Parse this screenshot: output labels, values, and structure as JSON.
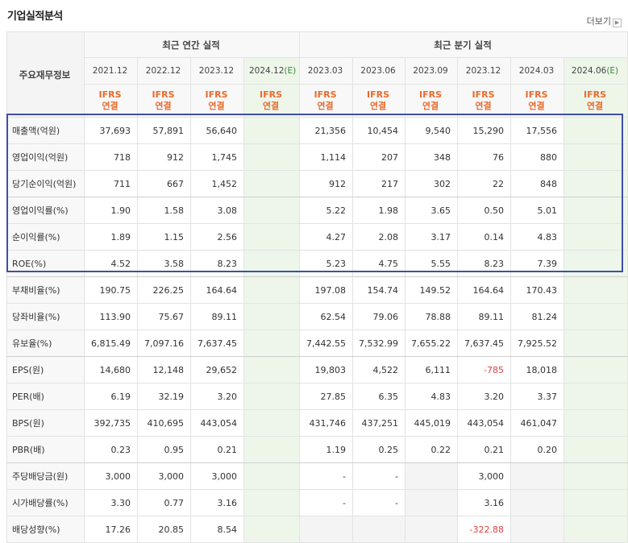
{
  "title": "기업실적분석",
  "more_label": "더보기",
  "header": {
    "row_label": "주요재무정보",
    "annual_group": "최근 연간 실적",
    "quarter_group": "최근 분기 실적",
    "periods": [
      "2021.12",
      "2022.12",
      "2023.12",
      "2024.12",
      "2023.03",
      "2023.06",
      "2023.09",
      "2023.12",
      "2024.03",
      "2024.06"
    ],
    "estimate_mark": "(E)",
    "ifrs": "IFRS",
    "consolidated": "연결"
  },
  "rows": [
    {
      "label": "매출액(억원)",
      "values": [
        "37,693",
        "57,891",
        "56,640",
        "",
        "21,356",
        "10,454",
        "9,540",
        "15,290",
        "17,556",
        ""
      ]
    },
    {
      "label": "영업이익(억원)",
      "values": [
        "718",
        "912",
        "1,745",
        "",
        "1,114",
        "207",
        "348",
        "76",
        "880",
        ""
      ]
    },
    {
      "label": "당기순이익(억원)",
      "values": [
        "711",
        "667",
        "1,452",
        "",
        "912",
        "217",
        "302",
        "22",
        "848",
        ""
      ]
    },
    {
      "label": "영업이익률(%)",
      "values": [
        "1.90",
        "1.58",
        "3.08",
        "",
        "5.22",
        "1.98",
        "3.65",
        "0.50",
        "5.01",
        ""
      ]
    },
    {
      "label": "순이익률(%)",
      "values": [
        "1.89",
        "1.15",
        "2.56",
        "",
        "4.27",
        "2.08",
        "3.17",
        "0.14",
        "4.83",
        ""
      ]
    },
    {
      "label": "ROE(%)",
      "values": [
        "4.52",
        "3.58",
        "8.23",
        "",
        "5.23",
        "4.75",
        "5.55",
        "8.23",
        "7.39",
        ""
      ]
    },
    {
      "label": "부채비율(%)",
      "values": [
        "190.75",
        "226.25",
        "164.64",
        "",
        "197.08",
        "154.74",
        "149.52",
        "164.64",
        "170.43",
        ""
      ]
    },
    {
      "label": "당좌비율(%)",
      "values": [
        "113.90",
        "75.67",
        "89.11",
        "",
        "62.54",
        "79.06",
        "78.88",
        "89.11",
        "81.24",
        ""
      ]
    },
    {
      "label": "유보율(%)",
      "values": [
        "6,815.49",
        "7,097.16",
        "7,637.45",
        "",
        "7,442.55",
        "7,532.99",
        "7,655.22",
        "7,637.45",
        "7,925.52",
        ""
      ]
    },
    {
      "label": "EPS(원)",
      "values": [
        "14,680",
        "12,148",
        "29,652",
        "",
        "19,803",
        "4,522",
        "6,111",
        "-785",
        "18,018",
        ""
      ]
    },
    {
      "label": "PER(배)",
      "values": [
        "6.19",
        "32.19",
        "3.20",
        "",
        "27.85",
        "6.35",
        "4.83",
        "3.20",
        "3.37",
        ""
      ]
    },
    {
      "label": "BPS(원)",
      "values": [
        "392,735",
        "410,695",
        "443,054",
        "",
        "431,746",
        "437,251",
        "445,019",
        "443,054",
        "461,047",
        ""
      ]
    },
    {
      "label": "PBR(배)",
      "values": [
        "0.23",
        "0.95",
        "0.21",
        "",
        "1.19",
        "0.25",
        "0.22",
        "0.21",
        "0.20",
        ""
      ]
    },
    {
      "label": "주당배당금(원)",
      "values": [
        "3,000",
        "3,000",
        "3,000",
        "",
        "-",
        "-",
        "",
        "3,000",
        "",
        ""
      ]
    },
    {
      "label": "시가배당률(%)",
      "values": [
        "3.30",
        "0.77",
        "3.16",
        "",
        "-",
        "-",
        "",
        "3.16",
        "",
        ""
      ]
    },
    {
      "label": "배당성향(%)",
      "values": [
        "17.26",
        "20.85",
        "8.54",
        "",
        "",
        "",
        "",
        "-322.88",
        "",
        ""
      ]
    }
  ],
  "colors": {
    "highlight_border": "#3e4fa6",
    "ifrs_text": "#e96b2c",
    "negative": "#e04040",
    "estimate_bg": "#eef6ea"
  }
}
